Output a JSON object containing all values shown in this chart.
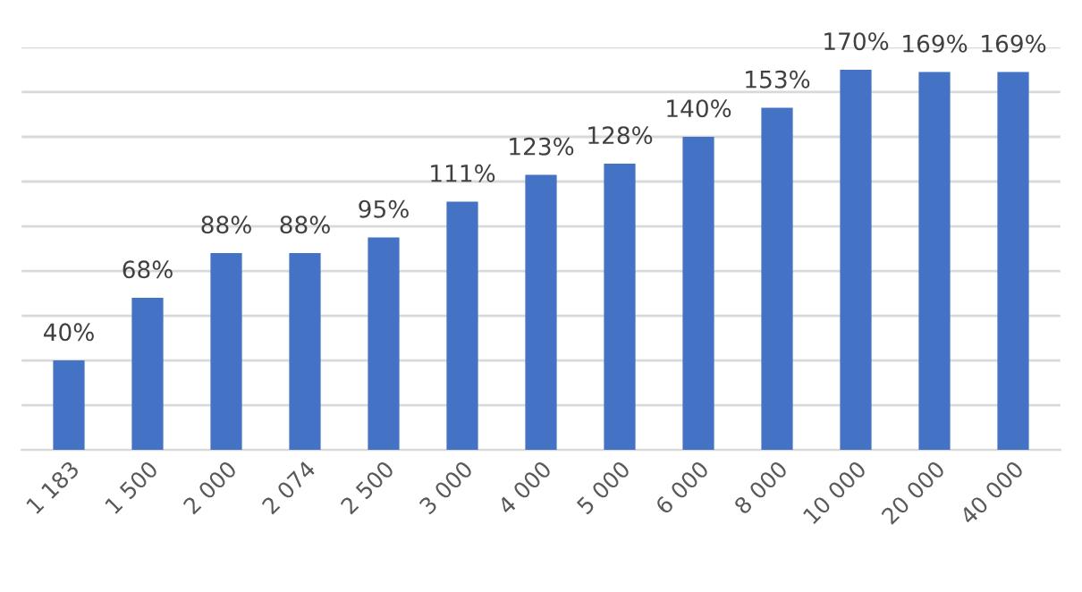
{
  "chart_data": {
    "type": "bar",
    "categories": [
      "1 183",
      "1 500",
      "2 000",
      "2 074",
      "2 500",
      "3 000",
      "4 000",
      "5 000",
      "6 000",
      "8 000",
      "10 000",
      "20 000",
      "40 000"
    ],
    "values": [
      40,
      68,
      88,
      88,
      95,
      111,
      123,
      128,
      140,
      153,
      170,
      169,
      169
    ],
    "value_labels": [
      "40%",
      "68%",
      "88%",
      "88%",
      "95%",
      "111%",
      "123%",
      "128%",
      "140%",
      "153%",
      "170%",
      "169%",
      "169%"
    ],
    "color": "#4472c4",
    "ylim": [
      0,
      180
    ],
    "yticks": [
      {
        "value": 0,
        "label": null
      },
      {
        "value": 20,
        "label": null
      },
      {
        "value": 40,
        "label": null
      },
      {
        "value": 60,
        "label": null
      },
      {
        "value": 80,
        "label": null
      },
      {
        "value": 100,
        "label": null
      },
      {
        "value": 120,
        "label": null
      },
      {
        "value": 140,
        "label": null
      },
      {
        "value": 160,
        "label": null
      },
      {
        "value": 180,
        "label": null
      }
    ],
    "tick_labels": "x",
    "grid": "y"
  }
}
